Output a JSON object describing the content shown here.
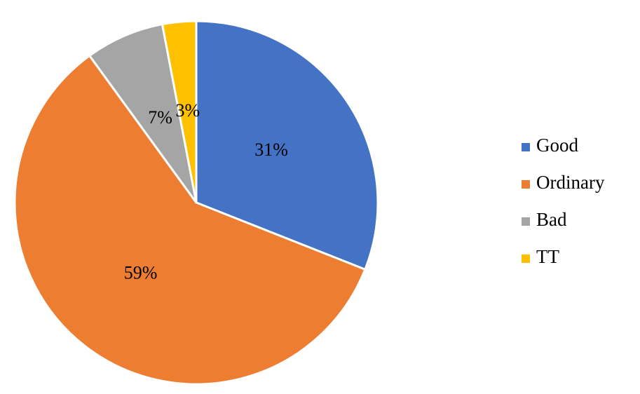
{
  "chart_data": {
    "type": "pie",
    "categories": [
      "Good",
      "Ordinary",
      "Bad",
      "TT"
    ],
    "values": [
      31,
      59,
      7,
      3
    ],
    "value_labels": [
      "31%",
      "59%",
      "7%",
      "3%"
    ],
    "colors": [
      "#4472c4",
      "#ed7d31",
      "#a5a5a5",
      "#ffc000"
    ],
    "legend": "right"
  }
}
